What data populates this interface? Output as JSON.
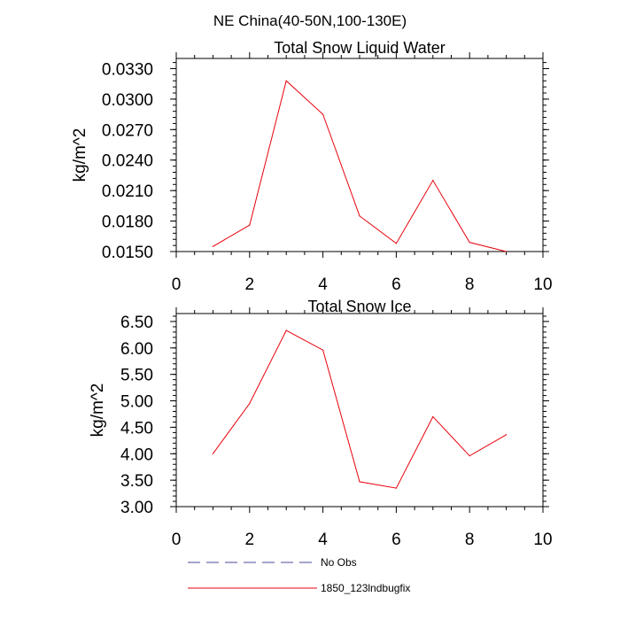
{
  "figure_title": "NE China(40-50N,100-130E)",
  "legend": {
    "entries": [
      {
        "label": "No Obs",
        "color": "#4a4a9a",
        "style": "dashed"
      },
      {
        "label": "1850_123lndbugfix",
        "color": "#e8000b",
        "style": "solid"
      }
    ]
  },
  "chart_data": [
    {
      "type": "line",
      "title": "Total Snow Liquid Water",
      "xlabel": "",
      "ylabel": "kg/m^2",
      "xlim": [
        0,
        10
      ],
      "ylim": [
        0.015,
        0.034
      ],
      "xticks": [
        0,
        2,
        4,
        6,
        8,
        10
      ],
      "xtick_labels": [
        "0",
        "2",
        "4",
        "6",
        "8",
        "10"
      ],
      "yticks": [
        0.015,
        0.018,
        0.021,
        0.024,
        0.027,
        0.03,
        0.033
      ],
      "ytick_labels": [
        "0.0150",
        "0.0180",
        "0.0210",
        "0.0240",
        "0.0270",
        "0.0300",
        "0.0330"
      ],
      "series": [
        {
          "name": "1850_123lndbugfix",
          "color": "#e8000b",
          "x": [
            1,
            2,
            3,
            4,
            5,
            6,
            7,
            8,
            9
          ],
          "values": [
            0.0155,
            0.0176,
            0.0318,
            0.0285,
            0.0185,
            0.0158,
            0.022,
            0.0159,
            0.015
          ]
        }
      ]
    },
    {
      "type": "line",
      "title": "Total Snow Ice",
      "xlabel": "",
      "ylabel": "kg/m^2",
      "xlim": [
        0,
        10
      ],
      "ylim": [
        3.0,
        6.65
      ],
      "xticks": [
        0,
        2,
        4,
        6,
        8,
        10
      ],
      "xtick_labels": [
        "0",
        "2",
        "4",
        "6",
        "8",
        "10"
      ],
      "yticks": [
        3.0,
        3.5,
        4.0,
        4.5,
        5.0,
        5.5,
        6.0,
        6.5
      ],
      "ytick_labels": [
        "3.00",
        "3.50",
        "4.00",
        "4.50",
        "5.00",
        "5.50",
        "6.00",
        "6.50"
      ],
      "series": [
        {
          "name": "1850_123lndbugfix",
          "color": "#e8000b",
          "x": [
            1,
            2,
            3,
            4,
            5,
            6,
            7,
            8,
            9
          ],
          "values": [
            4.0,
            4.95,
            6.33,
            5.96,
            3.47,
            3.35,
            4.7,
            3.96,
            4.36
          ]
        }
      ]
    }
  ]
}
